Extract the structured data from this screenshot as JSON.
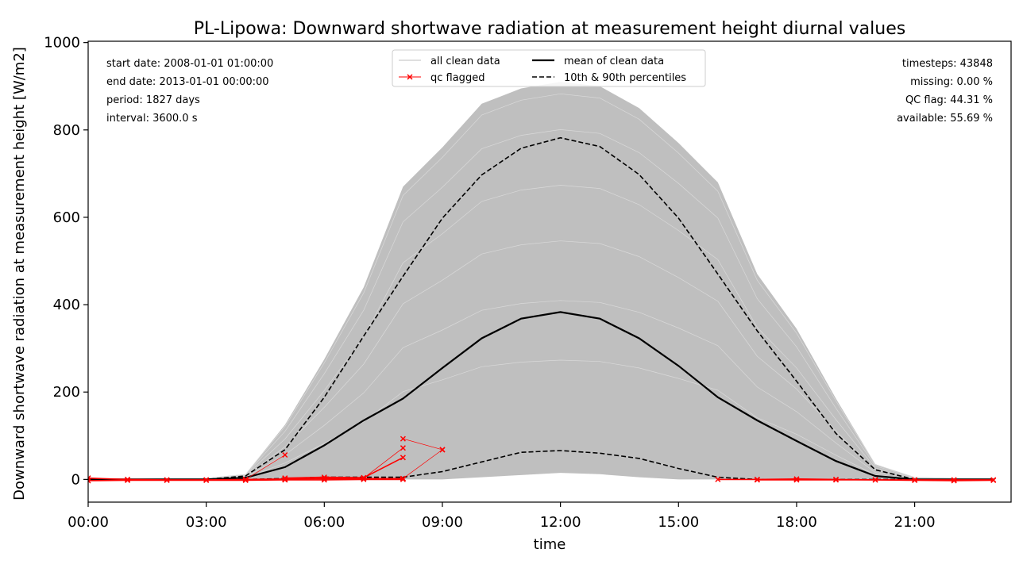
{
  "chart_data": {
    "type": "line",
    "title": "PL-Lipowa: Downward shortwave radiation at measurement height diurnal values",
    "xlabel": "time",
    "ylabel": "Downward shortwave radiation at measurement height [W/m2]",
    "xlim": [
      0,
      23.45
    ],
    "ylim": [
      -52,
      1003
    ],
    "x_ticks": [
      {
        "value": 0,
        "label": "00:00"
      },
      {
        "value": 3,
        "label": "03:00"
      },
      {
        "value": 6,
        "label": "06:00"
      },
      {
        "value": 9,
        "label": "09:00"
      },
      {
        "value": 12,
        "label": "12:00"
      },
      {
        "value": 15,
        "label": "15:00"
      },
      {
        "value": 18,
        "label": "18:00"
      },
      {
        "value": 21,
        "label": "21:00"
      }
    ],
    "y_ticks": [
      0,
      200,
      400,
      600,
      800,
      1000
    ],
    "grid": false,
    "legend_position": "top-center",
    "hours": [
      0,
      1,
      2,
      3,
      4,
      5,
      6,
      7,
      8,
      9,
      10,
      11,
      12,
      13,
      14,
      15,
      16,
      17,
      18,
      19,
      20,
      21,
      22,
      23
    ],
    "series": [
      {
        "name": "mean of clean data",
        "style": "solid",
        "color": "#000000",
        "values": [
          0,
          0,
          0,
          0,
          4,
          28,
          78,
          135,
          185,
          255,
          323,
          368,
          383,
          368,
          323,
          260,
          188,
          135,
          88,
          42,
          8,
          0,
          0,
          0
        ]
      },
      {
        "name": "10th & 90th percentiles",
        "style": "dashed",
        "color": "#000000",
        "values": [
          0,
          0,
          0,
          0,
          8,
          68,
          188,
          328,
          465,
          598,
          697,
          758,
          782,
          762,
          698,
          598,
          470,
          340,
          225,
          105,
          22,
          0,
          0,
          0
        ]
      },
      {
        "name": "10th & 90th percentiles",
        "style": "dashed",
        "color": "#000000",
        "show_in_legend": false,
        "values": [
          0,
          0,
          0,
          0,
          0,
          2,
          5,
          5,
          5,
          18,
          40,
          62,
          66,
          60,
          48,
          25,
          5,
          0,
          0,
          0,
          0,
          0,
          0,
          0
        ]
      }
    ],
    "envelope": {
      "name": "all clean data",
      "color": "#bfbfbf",
      "upper": [
        2,
        2,
        2,
        3,
        12,
        125,
        275,
        440,
        670,
        760,
        860,
        895,
        910,
        900,
        850,
        770,
        680,
        470,
        345,
        185,
        35,
        5,
        3,
        3
      ],
      "lower": [
        0,
        0,
        0,
        0,
        0,
        0,
        0,
        0,
        0,
        0,
        5,
        10,
        15,
        12,
        5,
        0,
        0,
        0,
        0,
        0,
        0,
        0,
        0,
        0
      ]
    },
    "qc_flagged": {
      "name": "qc flagged",
      "color": "#ff0000",
      "segments": [
        [
          [
            0,
            3
          ],
          [
            1,
            0
          ],
          [
            2,
            -1
          ],
          [
            3,
            -1
          ],
          [
            4,
            0
          ],
          [
            5,
            1
          ],
          [
            6,
            2
          ],
          [
            7,
            2
          ],
          [
            8,
            2
          ]
        ],
        [
          [
            0,
            -3
          ],
          [
            1,
            -2
          ],
          [
            2,
            -2
          ],
          [
            3,
            -2
          ],
          [
            4,
            -2
          ],
          [
            5,
            -1
          ],
          [
            6,
            -1
          ],
          [
            7,
            0
          ],
          [
            8,
            0
          ]
        ],
        [
          [
            4,
            0
          ],
          [
            5,
            56
          ]
        ],
        [
          [
            5,
            3
          ],
          [
            6,
            5
          ],
          [
            7,
            4
          ],
          [
            8,
            50
          ]
        ],
        [
          [
            7,
            3
          ],
          [
            8,
            72
          ]
        ],
        [
          [
            8,
            93
          ],
          [
            9,
            68
          ]
        ],
        [
          [
            8,
            2
          ],
          [
            9,
            68
          ]
        ],
        [
          [
            16,
            0
          ],
          [
            17,
            0
          ],
          [
            18,
            1
          ],
          [
            19,
            0
          ],
          [
            20,
            -1
          ],
          [
            21,
            -2
          ],
          [
            22,
            -3
          ],
          [
            23,
            -2
          ]
        ],
        [
          [
            17,
            -1
          ],
          [
            18,
            -1
          ],
          [
            19,
            -1
          ],
          [
            20,
            -1
          ],
          [
            21,
            -1
          ],
          [
            22,
            -1
          ],
          [
            23,
            -1
          ]
        ]
      ]
    },
    "legend": [
      {
        "label": "all clean data",
        "kind": "envelope"
      },
      {
        "label": "qc flagged",
        "kind": "qc"
      },
      {
        "label": "mean of clean data",
        "kind": "mean"
      },
      {
        "label": "10th & 90th percentiles",
        "kind": "pct"
      }
    ],
    "info_left": [
      "start date: 2008-01-01 01:00:00",
      "end date: 2013-01-01 00:00:00",
      "period: 1827 days",
      "interval: 3600.0 s"
    ],
    "info_right": [
      "timesteps: 43848",
      "missing: 0.00 %",
      "QC flag: 44.31 %",
      "available: 55.69 %"
    ]
  }
}
